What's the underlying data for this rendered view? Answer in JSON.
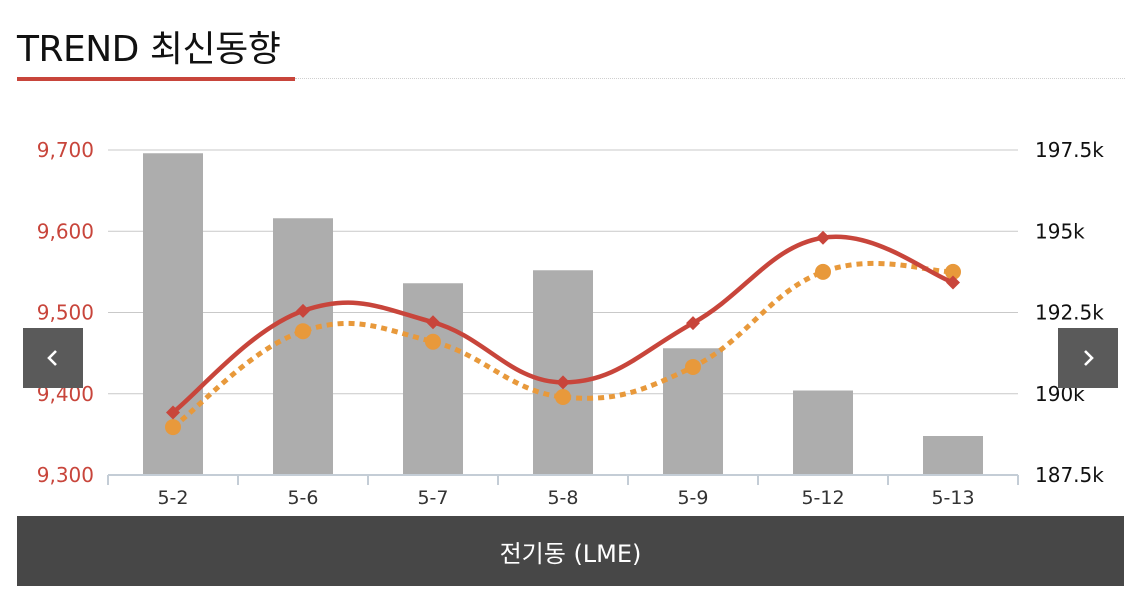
{
  "header": {
    "title": "TREND 최신동향"
  },
  "nav": {
    "prev_icon": "chevron-left-icon",
    "next_icon": "chevron-right-icon"
  },
  "footer": {
    "label": "전기동 (LME)"
  },
  "colors": {
    "bar": "#adadad",
    "line_primary": "#c8453b",
    "line_secondary": "#e8993b",
    "left_axis_text": "#c8453b",
    "accent": "#c8453b",
    "nav_bg": "#5a5a5a",
    "footer_bg": "#474747"
  },
  "chart_data": {
    "type": "bar",
    "categories": [
      "5-2",
      "5-6",
      "5-7",
      "5-8",
      "5-9",
      "5-12",
      "5-13"
    ],
    "left_axis": {
      "ticks": [
        "9,300",
        "9,400",
        "9,500",
        "9,600",
        "9,700"
      ],
      "ylim": [
        9300,
        9700
      ]
    },
    "right_axis": {
      "ticks": [
        "187.5k",
        "190k",
        "192.5k",
        "195k",
        "197.5k"
      ],
      "ylim": [
        187500,
        197500
      ]
    },
    "grid": true,
    "series": [
      {
        "type": "bar",
        "axis": "right",
        "values": [
          197400,
          195400,
          193400,
          193800,
          191400,
          190100,
          188700
        ]
      },
      {
        "type": "line",
        "axis": "left",
        "style": "solid",
        "marker": "diamond",
        "values": [
          9377,
          9502,
          9488,
          9414,
          9487,
          9592,
          9537
        ]
      },
      {
        "type": "line",
        "axis": "left",
        "style": "dotted",
        "marker": "circle",
        "values": [
          9359,
          9477,
          9464,
          9396,
          9433,
          9550,
          9550
        ]
      }
    ]
  }
}
